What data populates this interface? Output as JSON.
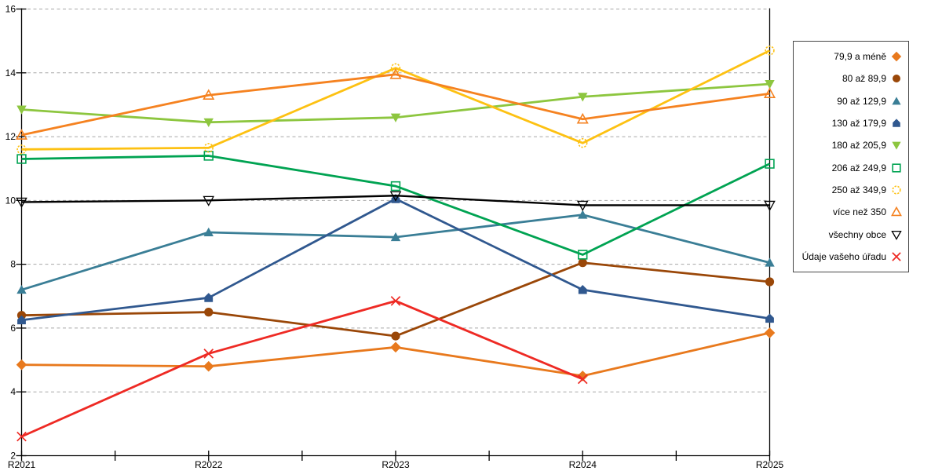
{
  "chart_data": {
    "type": "line",
    "title": "",
    "xlabel": "",
    "ylabel": "",
    "categories": [
      "R2021",
      "R2022",
      "R2023",
      "R2024",
      "R2025"
    ],
    "ylim": [
      2,
      16
    ],
    "ytick_step": 2,
    "y_tick_labels": [
      "2",
      "4",
      "6",
      "8",
      "10",
      "12",
      "14",
      "16"
    ],
    "grid": "horizontal-dashed",
    "grid_color": "#a8a8a8",
    "axis_color": "#000000",
    "legend_position": "right",
    "series": [
      {
        "name": "79,9 a méně",
        "marker": "diamond",
        "color": "#E8791D",
        "line_width": 2.8,
        "values": [
          4.85,
          4.8,
          5.4,
          4.5,
          5.85
        ]
      },
      {
        "name": "80 až 89,9",
        "marker": "circle",
        "color": "#9A4708",
        "line_width": 2.8,
        "values": [
          6.4,
          6.5,
          5.75,
          8.05,
          7.45
        ]
      },
      {
        "name": "90 až 129,9",
        "marker": "triangle-up",
        "color": "#3A7E96",
        "line_width": 2.8,
        "values": [
          7.2,
          9.0,
          8.85,
          9.55,
          8.05
        ]
      },
      {
        "name": "130 až 179,9",
        "marker": "pentagon",
        "color": "#30588F",
        "line_width": 2.8,
        "values": [
          6.25,
          6.95,
          10.05,
          7.2,
          6.3
        ]
      },
      {
        "name": "180 až 205,9",
        "marker": "triangle-down",
        "color": "#8DC63F",
        "line_width": 2.8,
        "values": [
          12.85,
          12.45,
          12.6,
          13.25,
          13.65
        ]
      },
      {
        "name": "206 až 249,9",
        "marker": "square-open",
        "color": "#00A352",
        "line_width": 2.8,
        "values": [
          11.3,
          11.4,
          10.45,
          8.3,
          11.15
        ]
      },
      {
        "name": "250 až 349,9",
        "marker": "circle-open-dashed",
        "color": "#FDC112",
        "line_width": 2.8,
        "values": [
          11.6,
          11.65,
          14.15,
          11.8,
          14.7
        ]
      },
      {
        "name": "více než 350",
        "marker": "triangle-up-open",
        "color": "#F58220",
        "line_width": 2.8,
        "values": [
          12.05,
          13.3,
          13.95,
          12.55,
          13.35
        ]
      },
      {
        "name": "všechny obce",
        "marker": "triangle-down-open",
        "color": "#000000",
        "line_width": 2.4,
        "values": [
          9.95,
          10.0,
          10.15,
          9.85,
          9.85
        ]
      },
      {
        "name": "Údaje vašeho úřadu",
        "marker": "x",
        "color": "#EE2A24",
        "line_width": 2.8,
        "values": [
          2.6,
          5.2,
          6.85,
          4.4,
          null
        ]
      }
    ]
  }
}
